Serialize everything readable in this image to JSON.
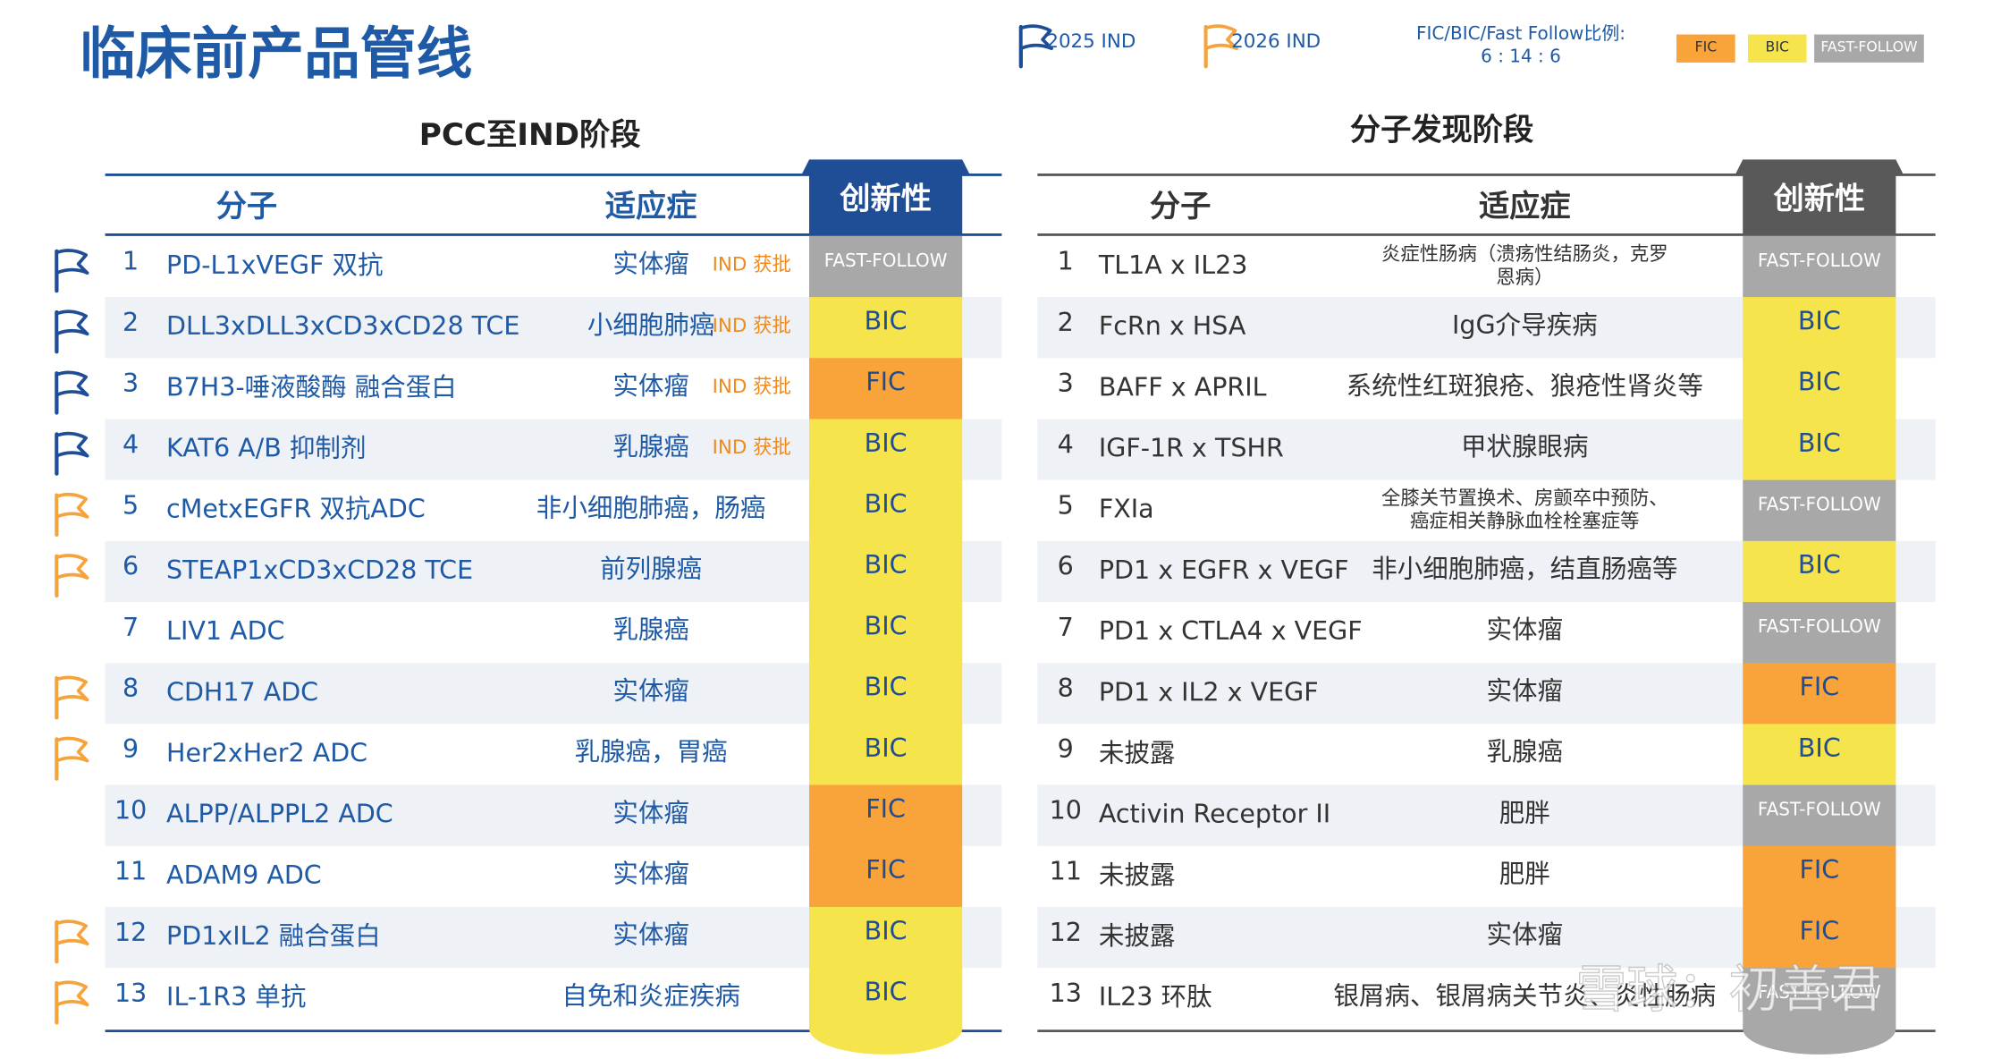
{
  "header": {
    "title": "临床前产品管线",
    "flag_legend": [
      {
        "label": "2025 IND",
        "color": "#1f4e96"
      },
      {
        "label": "2026 IND",
        "color": "#f5a33c"
      }
    ],
    "ratio_title": "FIC/BIC/Fast Follow比例:",
    "ratio_value": "6 : 14 : 6",
    "innovation_legend": [
      {
        "label": "FIC",
        "color": "#f9a43b",
        "text_color": "#1f4e96"
      },
      {
        "label": "BIC",
        "color": "#f5e44c",
        "text_color": "#1f4e96"
      },
      {
        "label": "FAST-FOLLOW",
        "color": "#a8a8a8",
        "text_color": "#ffffff"
      }
    ]
  },
  "left_table": {
    "title": "PCC至IND阶段",
    "columns": [
      "分子",
      "适应症",
      "创新性"
    ],
    "header_color": "#1f4e96",
    "rows": [
      {
        "no": "1",
        "molecule": "PD-L1xVEGF 双抗",
        "indication": "实体瘤",
        "status": "IND 获批",
        "innovation": "FAST-FOLLOW",
        "flag": "#1f4e96"
      },
      {
        "no": "2",
        "molecule": "DLL3xDLL3xCD3xCD28 TCE",
        "indication": "小细胞肺癌",
        "status": "IND 获批",
        "innovation": "BIC",
        "flag": "#1f4e96"
      },
      {
        "no": "3",
        "molecule": "B7H3-唾液酸酶 融合蛋白",
        "indication": "实体瘤",
        "status": "IND 获批",
        "innovation": "FIC",
        "flag": "#1f4e96"
      },
      {
        "no": "4",
        "molecule": "KAT6 A/B 抑制剂",
        "indication": "乳腺癌",
        "status": "IND 获批",
        "innovation": "BIC",
        "flag": "#1f4e96"
      },
      {
        "no": "5",
        "molecule": "cMetxEGFR 双抗ADC",
        "indication": "非小细胞肺癌，肠癌",
        "status": null,
        "innovation": "BIC",
        "flag": "#f5a33c"
      },
      {
        "no": "6",
        "molecule": "STEAP1xCD3xCD28 TCE",
        "indication": "前列腺癌",
        "status": null,
        "innovation": "BIC",
        "flag": "#f5a33c"
      },
      {
        "no": "7",
        "molecule": "LIV1 ADC",
        "indication": "乳腺癌",
        "status": null,
        "innovation": "BIC",
        "flag": null
      },
      {
        "no": "8",
        "molecule": "CDH17 ADC",
        "indication": "实体瘤",
        "status": null,
        "innovation": "BIC",
        "flag": "#f5a33c"
      },
      {
        "no": "9",
        "molecule": "Her2xHer2 ADC",
        "indication": "乳腺癌，胃癌",
        "status": null,
        "innovation": "BIC",
        "flag": "#f5a33c"
      },
      {
        "no": "10",
        "molecule": "ALPP/ALPPL2 ADC",
        "indication": "实体瘤",
        "status": null,
        "innovation": "FIC",
        "flag": null
      },
      {
        "no": "11",
        "molecule": "ADAM9 ADC",
        "indication": "实体瘤",
        "status": null,
        "innovation": "FIC",
        "flag": null
      },
      {
        "no": "12",
        "molecule": "PD1xIL2 融合蛋白",
        "indication": "实体瘤",
        "status": null,
        "innovation": "BIC",
        "flag": "#f5a33c"
      },
      {
        "no": "13",
        "molecule": "IL-1R3 单抗",
        "indication": "自免和炎症疾病",
        "status": null,
        "innovation": "BIC",
        "flag": "#f5a33c"
      }
    ]
  },
  "right_table": {
    "title": "分子发现阶段",
    "columns": [
      "分子",
      "适应症",
      "创新性"
    ],
    "header_color": "#595959",
    "rows": [
      {
        "no": "1",
        "molecule": "TL1A x IL23",
        "indication": "炎症性肠病（溃疡性结肠炎，克罗恩病）",
        "innovation": "FAST-FOLLOW"
      },
      {
        "no": "2",
        "molecule": "FcRn x HSA",
        "indication": "IgG介导疾病",
        "innovation": "BIC"
      },
      {
        "no": "3",
        "molecule": "BAFF x APRIL",
        "indication": "系统性红斑狼疮、狼疮性肾炎等",
        "innovation": "BIC"
      },
      {
        "no": "4",
        "molecule": "IGF-1R x TSHR",
        "indication": "甲状腺眼病",
        "innovation": "BIC"
      },
      {
        "no": "5",
        "molecule": "FXIa",
        "indication": "全膝关节置换术、房颤卒中预防、癌症相关静脉血栓栓塞症等",
        "innovation": "FAST-FOLLOW"
      },
      {
        "no": "6",
        "molecule": "PD1 x EGFR x VEGF",
        "indication": "非小细胞肺癌，结直肠癌等",
        "innovation": "BIC"
      },
      {
        "no": "7",
        "molecule": "PD1 x CTLA4 x VEGF",
        "indication": "实体瘤",
        "innovation": "FAST-FOLLOW"
      },
      {
        "no": "8",
        "molecule": "PD1 x IL2 x VEGF",
        "indication": "实体瘤",
        "innovation": "FIC"
      },
      {
        "no": "9",
        "molecule": "未披露",
        "indication": "乳腺癌",
        "innovation": "BIC"
      },
      {
        "no": "10",
        "molecule": "Activin Receptor II",
        "indication": "肥胖",
        "innovation": "FAST-FOLLOW"
      },
      {
        "no": "11",
        "molecule": "未披露",
        "indication": "肥胖",
        "innovation": "FIC"
      },
      {
        "no": "12",
        "molecule": "未披露",
        "indication": "实体瘤",
        "innovation": "FIC"
      },
      {
        "no": "13",
        "molecule": "IL23 环肽",
        "indication": "银屑病、银屑病关节炎、炎性肠病",
        "innovation": "FAST-FOLLOW"
      }
    ]
  },
  "watermark": "雪球：初善君"
}
